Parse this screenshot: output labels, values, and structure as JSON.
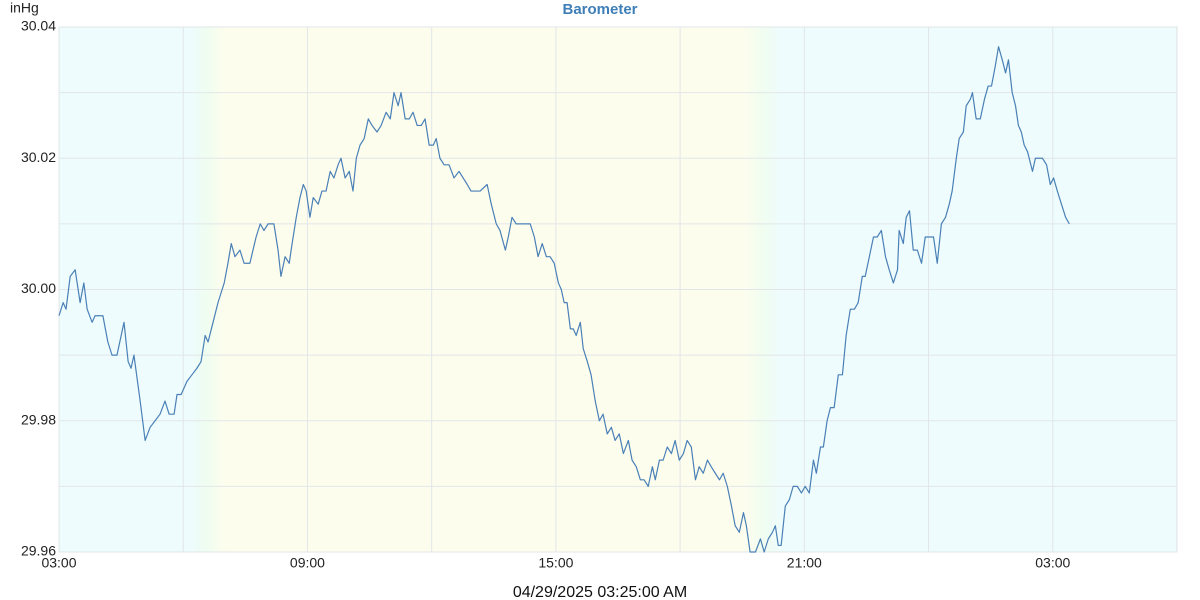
{
  "chart_data": {
    "type": "line",
    "title": "Barometer",
    "y_label": "inHg",
    "footer": "04/29/2025 03:25:00 AM",
    "color": "#4a80b6",
    "xlim": [
      3,
      30
    ],
    "xticks": [
      {
        "value": 3,
        "label": "03:00"
      },
      {
        "value": 9,
        "label": "09:00"
      },
      {
        "value": 15,
        "label": "15:00"
      },
      {
        "value": 21,
        "label": "21:00"
      },
      {
        "value": 27,
        "label": "03:00"
      }
    ],
    "xgrid_minor": [
      6,
      12,
      18,
      24
    ],
    "ylim": [
      29.96,
      30.04
    ],
    "yticks": [
      29.96,
      29.98,
      {
        "value": 30,
        "label": "30.00"
      },
      30.02,
      30.04
    ],
    "ygrid_minor": [
      29.97,
      29.99,
      30.01,
      30.03
    ],
    "grid": true,
    "x": [
      3.0,
      3.1,
      3.17,
      3.27,
      3.39,
      3.51,
      3.6,
      3.68,
      3.8,
      3.87,
      4.06,
      4.18,
      4.28,
      4.4,
      4.57,
      4.67,
      4.74,
      4.81,
      4.96,
      5.08,
      5.2,
      5.32,
      5.44,
      5.56,
      5.66,
      5.78,
      5.85,
      5.95,
      6.09,
      6.21,
      6.33,
      6.43,
      6.53,
      6.6,
      6.72,
      6.84,
      6.99,
      7.08,
      7.16,
      7.25,
      7.37,
      7.47,
      7.61,
      7.76,
      7.86,
      7.95,
      8.05,
      8.19,
      8.29,
      8.36,
      8.46,
      8.56,
      8.63,
      8.73,
      8.82,
      8.9,
      8.97,
      9.06,
      9.14,
      9.26,
      9.35,
      9.45,
      9.55,
      9.64,
      9.74,
      9.81,
      9.91,
      10.01,
      10.1,
      10.18,
      10.27,
      10.37,
      10.47,
      10.56,
      10.68,
      10.78,
      10.9,
      11.0,
      11.09,
      11.19,
      11.26,
      11.36,
      11.46,
      11.55,
      11.65,
      11.75,
      11.84,
      11.94,
      12.04,
      12.11,
      12.2,
      12.3,
      12.42,
      12.54,
      12.66,
      12.76,
      12.86,
      12.95,
      13.17,
      13.34,
      13.44,
      13.56,
      13.65,
      13.78,
      13.85,
      13.94,
      14.04,
      14.38,
      14.48,
      14.57,
      14.67,
      14.77,
      14.86,
      14.96,
      15.06,
      15.13,
      15.2,
      15.27,
      15.35,
      15.42,
      15.49,
      15.59,
      15.66,
      15.76,
      15.85,
      15.95,
      16.05,
      16.14,
      16.24,
      16.34,
      16.43,
      16.53,
      16.63,
      16.75,
      16.84,
      16.94,
      17.04,
      17.13,
      17.23,
      17.33,
      17.4,
      17.5,
      17.59,
      17.69,
      17.79,
      17.88,
      17.98,
      18.08,
      18.17,
      18.27,
      18.37,
      18.46,
      18.56,
      18.66,
      18.75,
      18.85,
      18.95,
      19.04,
      19.14,
      19.24,
      19.33,
      19.43,
      19.53,
      19.6,
      19.69,
      19.82,
      19.94,
      20.03,
      20.13,
      20.23,
      20.3,
      20.37,
      20.44,
      20.54,
      20.64,
      20.73,
      20.83,
      20.93,
      21.02,
      21.12,
      21.22,
      21.29,
      21.39,
      21.46,
      21.55,
      21.63,
      21.72,
      21.82,
      21.92,
      22.01,
      22.11,
      22.21,
      22.3,
      22.4,
      22.47,
      22.57,
      22.67,
      22.76,
      22.86,
      22.96,
      23.05,
      23.15,
      23.25,
      23.29,
      23.39,
      23.46,
      23.54,
      23.63,
      23.73,
      23.83,
      23.92,
      24.12,
      24.21,
      24.31,
      24.41,
      24.5,
      24.57,
      24.67,
      24.74,
      24.84,
      24.91,
      25.01,
      25.06,
      25.15,
      25.25,
      25.35,
      25.44,
      25.52,
      25.61,
      25.69,
      25.78,
      25.86,
      25.93,
      26.02,
      26.1,
      26.17,
      26.24,
      26.31,
      26.39,
      26.51,
      26.58,
      26.75,
      26.85,
      26.94,
      27.02,
      27.11,
      27.21,
      27.31,
      27.4
    ],
    "values": [
      29.996,
      29.998,
      29.997,
      30.002,
      30.003,
      29.998,
      30.001,
      29.997,
      29.995,
      29.996,
      29.996,
      29.992,
      29.99,
      29.99,
      29.995,
      29.989,
      29.988,
      29.99,
      29.983,
      29.977,
      29.979,
      29.98,
      29.981,
      29.983,
      29.981,
      29.981,
      29.984,
      29.984,
      29.986,
      29.987,
      29.988,
      29.989,
      29.993,
      29.992,
      29.995,
      29.998,
      30.001,
      30.004,
      30.007,
      30.005,
      30.006,
      30.004,
      30.004,
      30.008,
      30.01,
      30.009,
      30.01,
      30.01,
      30.006,
      30.002,
      30.005,
      30.004,
      30.007,
      30.011,
      30.014,
      30.016,
      30.015,
      30.011,
      30.014,
      30.013,
      30.015,
      30.015,
      30.018,
      30.017,
      30.019,
      30.02,
      30.017,
      30.018,
      30.015,
      30.02,
      30.022,
      30.023,
      30.026,
      30.025,
      30.024,
      30.025,
      30.027,
      30.026,
      30.03,
      30.028,
      30.03,
      30.026,
      30.026,
      30.027,
      30.025,
      30.025,
      30.026,
      30.022,
      30.022,
      30.023,
      30.02,
      30.019,
      30.019,
      30.017,
      30.018,
      30.017,
      30.016,
      30.015,
      30.015,
      30.016,
      30.013,
      30.01,
      30.009,
      30.006,
      30.008,
      30.011,
      30.01,
      30.01,
      30.008,
      30.005,
      30.007,
      30.005,
      30.005,
      30.004,
      30.001,
      30.0,
      29.998,
      29.998,
      29.994,
      29.994,
      29.993,
      29.995,
      29.991,
      29.989,
      29.987,
      29.983,
      29.98,
      29.981,
      29.978,
      29.979,
      29.977,
      29.978,
      29.975,
      29.977,
      29.974,
      29.973,
      29.971,
      29.971,
      29.97,
      29.973,
      29.971,
      29.974,
      29.974,
      29.976,
      29.975,
      29.977,
      29.974,
      29.975,
      29.977,
      29.976,
      29.971,
      29.973,
      29.972,
      29.974,
      29.973,
      29.972,
      29.971,
      29.972,
      29.97,
      29.967,
      29.964,
      29.963,
      29.966,
      29.964,
      29.96,
      29.96,
      29.962,
      29.96,
      29.962,
      29.963,
      29.964,
      29.961,
      29.961,
      29.967,
      29.968,
      29.97,
      29.97,
      29.969,
      29.97,
      29.969,
      29.974,
      29.972,
      29.976,
      29.976,
      29.98,
      29.982,
      29.982,
      29.987,
      29.987,
      29.993,
      29.997,
      29.997,
      29.998,
      30.002,
      30.002,
      30.005,
      30.008,
      30.008,
      30.009,
      30.005,
      30.003,
      30.001,
      30.003,
      30.009,
      30.007,
      30.011,
      30.012,
      30.006,
      30.006,
      30.004,
      30.008,
      30.008,
      30.004,
      30.01,
      30.011,
      30.013,
      30.015,
      30.02,
      30.023,
      30.024,
      30.028,
      30.029,
      30.03,
      30.026,
      30.026,
      30.029,
      30.031,
      30.031,
      30.034,
      30.037,
      30.035,
      30.033,
      30.035,
      30.03,
      30.028,
      30.025,
      30.024,
      30.022,
      30.021,
      30.018,
      30.02,
      30.02,
      30.019,
      30.016,
      30.017,
      30.015,
      30.013,
      30.011,
      30.01
    ]
  }
}
